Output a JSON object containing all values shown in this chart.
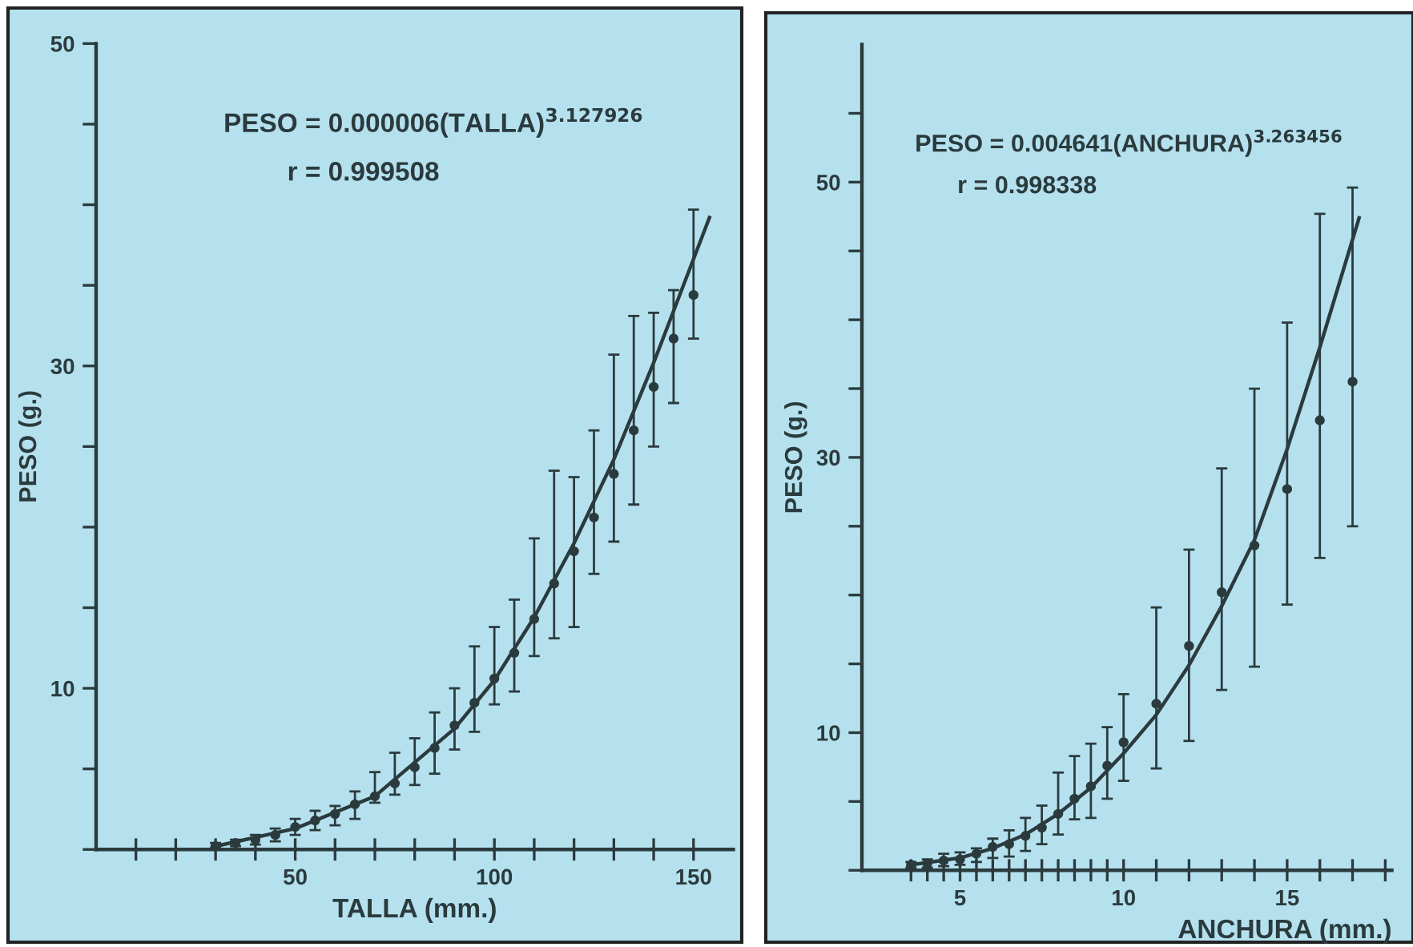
{
  "chart_data": [
    {
      "type": "scatter",
      "xlabel": "TALLA (mm.)",
      "ylabel": "PESO (g.)",
      "annotations": [
        "PESO = 0.000006(TALLA)$^{3.127926}$",
        "r = 0.999508"
      ],
      "xlim": [
        0,
        160
      ],
      "ylim": [
        0,
        50
      ],
      "xticks": [
        {
          "value": 10,
          "label": null
        },
        {
          "value": 20,
          "label": null
        },
        {
          "value": 30,
          "label": null
        },
        {
          "value": 40,
          "label": null
        },
        50,
        {
          "value": 60,
          "label": null
        },
        {
          "value": 70,
          "label": null
        },
        {
          "value": 80,
          "label": null
        },
        {
          "value": 90,
          "label": null
        },
        100,
        {
          "value": 110,
          "label": null
        },
        {
          "value": 120,
          "label": null
        },
        {
          "value": 130,
          "label": null
        },
        {
          "value": 140,
          "label": null
        },
        150
      ],
      "yticks": [
        {
          "value": 0,
          "label": null
        },
        {
          "value": 5,
          "label": null
        },
        10,
        {
          "value": 15,
          "label": null
        },
        {
          "value": 20,
          "label": null
        },
        {
          "value": 25,
          "label": null
        },
        30,
        {
          "value": 35,
          "label": null
        },
        {
          "value": 40,
          "label": null
        },
        {
          "value": 45,
          "label": null
        },
        50
      ],
      "grid": false,
      "series": [
        {
          "marker": "circle",
          "color": "#2b3b3d",
          "x": [
            30,
            35,
            40,
            45,
            50,
            55,
            60,
            65,
            70,
            75,
            80,
            85,
            90,
            95,
            100,
            105,
            110,
            115,
            120,
            125,
            130,
            135,
            140,
            145,
            150
          ],
          "values": [
            0.2,
            0.4,
            0.6,
            0.9,
            1.4,
            1.8,
            2.2,
            2.8,
            3.3,
            4.1,
            5.1,
            6.3,
            7.7,
            9.1,
            10.6,
            12.2,
            14.3,
            16.5,
            18.5,
            20.6,
            23.3,
            26.0,
            28.7,
            31.7,
            34.4
          ],
          "errors": [
            [
              0.1,
              0.4
            ],
            [
              0.2,
              0.6
            ],
            [
              0.3,
              0.9
            ],
            [
              0.5,
              1.3
            ],
            [
              0.9,
              1.9
            ],
            [
              1.2,
              2.4
            ],
            [
              1.5,
              2.7
            ],
            [
              1.9,
              3.6
            ],
            [
              2.9,
              4.8
            ],
            [
              3.4,
              6.0
            ],
            [
              4.0,
              6.9
            ],
            [
              4.7,
              8.5
            ],
            [
              6.2,
              10.0
            ],
            [
              7.3,
              12.6
            ],
            [
              9.0,
              13.8
            ],
            [
              9.8,
              15.5
            ],
            [
              12.0,
              19.3
            ],
            [
              13.1,
              23.5
            ],
            [
              13.8,
              23.1
            ],
            [
              17.1,
              26.0
            ],
            [
              19.1,
              30.7
            ],
            [
              21.4,
              33.1
            ],
            [
              25.0,
              33.3
            ],
            [
              27.7,
              34.7
            ],
            [
              31.7,
              39.7
            ]
          ]
        },
        {
          "type": "line",
          "color": "#2b3b3d",
          "x": [
            30,
            50,
            70,
            90,
            100,
            110,
            120,
            130,
            140,
            154
          ],
          "values": [
            0.2,
            1.3,
            3.3,
            7.5,
            10.5,
            14.4,
            19.0,
            24.2,
            30.2,
            39.2
          ]
        }
      ]
    },
    {
      "type": "scatter",
      "xlabel": "ANCHURA (mm.)",
      "ylabel": "PESO (g.)",
      "annotations": [
        "PESO = 0.004641(ANCHURA)$^{3.263456}$",
        "r = 0.998338"
      ],
      "xlim": [
        2,
        18.2
      ],
      "ylim": [
        0,
        60
      ],
      "xticks": [
        {
          "value": 3.5,
          "label": null
        },
        {
          "value": 4,
          "label": null
        },
        {
          "value": 4.5,
          "label": null
        },
        5,
        {
          "value": 5.5,
          "label": null
        },
        {
          "value": 6,
          "label": null
        },
        {
          "value": 6.5,
          "label": null
        },
        {
          "value": 7,
          "label": null
        },
        {
          "value": 7.5,
          "label": null
        },
        {
          "value": 8,
          "label": null
        },
        {
          "value": 8.5,
          "label": null
        },
        {
          "value": 9,
          "label": null
        },
        {
          "value": 9.5,
          "label": null
        },
        10,
        {
          "value": 11,
          "label": null
        },
        {
          "value": 12,
          "label": null
        },
        {
          "value": 13,
          "label": null
        },
        {
          "value": 14,
          "label": null
        },
        15,
        {
          "value": 16,
          "label": null
        },
        {
          "value": 17,
          "label": null
        },
        {
          "value": 18,
          "label": null
        }
      ],
      "yticks": [
        {
          "value": 0,
          "label": null
        },
        {
          "value": 5,
          "label": null
        },
        10,
        {
          "value": 15,
          "label": null
        },
        {
          "value": 20,
          "label": null
        },
        {
          "value": 25,
          "label": null
        },
        30,
        {
          "value": 35,
          "label": null
        },
        {
          "value": 40,
          "label": null
        },
        {
          "value": 45,
          "label": null
        },
        50,
        {
          "value": 55,
          "label": null
        }
      ],
      "grid": false,
      "series": [
        {
          "marker": "circle",
          "color": "#2b3b3d",
          "x": [
            3.5,
            4,
            4.5,
            5,
            5.5,
            6,
            6.5,
            7,
            7.5,
            8,
            8.5,
            9,
            9.5,
            10,
            11,
            12,
            13,
            14,
            15,
            16,
            17
          ],
          "values": [
            0.4,
            0.5,
            0.7,
            0.8,
            1.2,
            1.7,
            1.9,
            2.5,
            3.1,
            4.1,
            5.2,
            6.1,
            7.6,
            9.3,
            12.1,
            16.3,
            20.2,
            23.6,
            27.7,
            32.7,
            35.5
          ],
          "errors": [
            [
              0.2,
              0.6
            ],
            [
              0.2,
              0.8
            ],
            [
              0.3,
              1.2
            ],
            [
              0.4,
              1.3
            ],
            [
              0.6,
              1.6
            ],
            [
              0.9,
              2.3
            ],
            [
              1.0,
              2.9
            ],
            [
              1.4,
              3.8
            ],
            [
              1.9,
              4.7
            ],
            [
              2.6,
              7.1
            ],
            [
              3.7,
              8.3
            ],
            [
              3.8,
              9.2
            ],
            [
              5.2,
              10.4
            ],
            [
              6.5,
              12.8
            ],
            [
              7.4,
              19.1
            ],
            [
              9.4,
              23.3
            ],
            [
              13.1,
              29.2
            ],
            [
              14.8,
              35.0
            ],
            [
              19.3,
              39.8
            ],
            [
              22.7,
              47.7
            ],
            [
              25.0,
              49.6
            ]
          ]
        },
        {
          "type": "line",
          "color": "#2b3b3d",
          "x": [
            3.5,
            5,
            6,
            7,
            8,
            9,
            10,
            11,
            12,
            13,
            14,
            15,
            16,
            17.2
          ],
          "values": [
            0.4,
            0.9,
            1.6,
            2.6,
            4.1,
            6.0,
            8.5,
            11.3,
            14.9,
            19.2,
            24.0,
            30.6,
            38.0,
            47.4
          ]
        }
      ]
    }
  ]
}
